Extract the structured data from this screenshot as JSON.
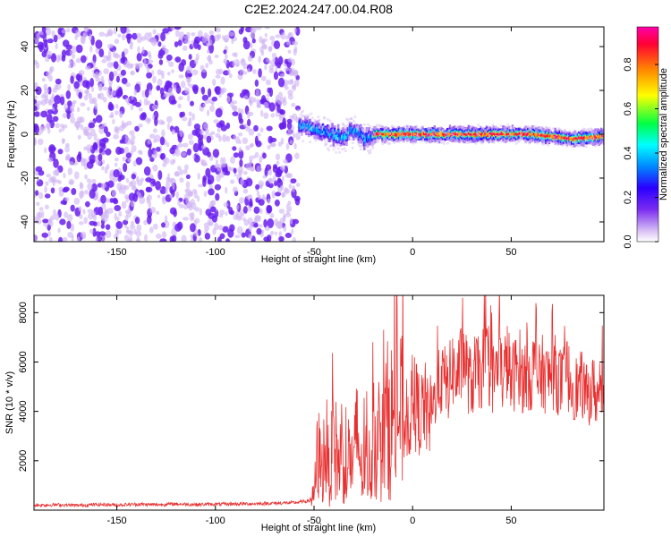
{
  "title": "C2E2.2024.247.00.04.R08",
  "chart_data": [
    {
      "type": "heatmap",
      "xlabel": "Height of straight line (km)",
      "ylabel": "Frequency (Hz)",
      "xlim": [
        -192,
        97
      ],
      "ylim": [
        -49,
        49
      ],
      "x_ticks": [
        -150,
        -100,
        -50,
        0,
        50
      ],
      "y_ticks": [
        -40,
        -20,
        0,
        20,
        40
      ],
      "grid": false,
      "colorbar": {
        "label": "Normalized spectral amplitude",
        "range": [
          0,
          0.97
        ],
        "ticks": [
          0.0,
          0.2,
          0.4,
          0.6,
          0.8
        ],
        "colormap": [
          "#ffffff",
          "#d8c0f4",
          "#7a2cf0",
          "#2a00ff",
          "#0088ff",
          "#00ffff",
          "#00ff44",
          "#ffff00",
          "#ff8800",
          "#ff0033",
          "#ff00aa"
        ]
      },
      "regions": [
        {
          "x_range": [
            -192,
            -58
          ],
          "freq_range": [
            -49,
            49
          ],
          "description_level": 0.15
        },
        {
          "x_range": [
            -58,
            -20
          ],
          "center_freq": [
            [
              -58,
              4
            ],
            [
              -50,
              3
            ],
            [
              -45,
              1
            ],
            [
              -40,
              0
            ],
            [
              -35,
              -1
            ],
            [
              -30,
              2
            ],
            [
              -25,
              -2
            ],
            [
              -20,
              0
            ]
          ],
          "peak_level": 0.45
        },
        {
          "x_range": [
            -20,
            97
          ],
          "center_freq": [
            [
              -20,
              0
            ],
            [
              0,
              0
            ],
            [
              20,
              0
            ],
            [
              40,
              0
            ],
            [
              60,
              0
            ],
            [
              80,
              -2
            ],
            [
              97,
              -1
            ]
          ],
          "peak_level": 0.95
        }
      ]
    },
    {
      "type": "line",
      "xlabel": "Height of straight line (km)",
      "ylabel": "SNR (10 * v/v)",
      "xlim": [
        -192,
        97
      ],
      "ylim": [
        0,
        8700
      ],
      "x_ticks": [
        -150,
        -100,
        -50,
        0,
        50
      ],
      "y_ticks": [
        2000,
        4000,
        6000,
        8000
      ],
      "grid": false,
      "series": [
        {
          "color": "#e83030",
          "x": [
            -192,
            -180,
            -170,
            -160,
            -150,
            -140,
            -130,
            -120,
            -110,
            -100,
            -90,
            -80,
            -70,
            -60,
            -52,
            -50,
            -48,
            -46,
            -44,
            -42,
            -40,
            -38,
            -36,
            -34,
            -32,
            -30,
            -28,
            -26,
            -24,
            -22,
            -20,
            -18,
            -16,
            -14,
            -12,
            -10,
            -8,
            -6,
            -4,
            -2,
            0,
            2,
            4,
            6,
            8,
            10,
            12,
            14,
            16,
            18,
            20,
            22,
            24,
            26,
            28,
            30,
            32,
            34,
            36,
            38,
            40,
            42,
            44,
            46,
            48,
            50,
            52,
            54,
            56,
            58,
            60,
            62,
            64,
            66,
            68,
            70,
            72,
            74,
            76,
            78,
            80,
            82,
            84,
            86,
            88,
            90,
            92,
            94,
            96
          ],
          "y": [
            200,
            220,
            190,
            230,
            210,
            240,
            220,
            250,
            230,
            240,
            250,
            260,
            280,
            300,
            380,
            600,
            2400,
            1600,
            2800,
            1200,
            3200,
            1800,
            2600,
            1400,
            2400,
            1600,
            3400,
            1500,
            2000,
            1800,
            2500,
            3000,
            2200,
            3400,
            3800,
            3600,
            4000,
            3900,
            3400,
            3700,
            4000,
            4200,
            3800,
            4300,
            3600,
            4000,
            4900,
            5200,
            5300,
            5000,
            5800,
            5300,
            5700,
            6400,
            5400,
            5100,
            5700,
            5400,
            5900,
            6000,
            5300,
            5500,
            5900,
            5400,
            6100,
            5200,
            5600,
            5900,
            5300,
            5700,
            5400,
            5900,
            5200,
            5600,
            5300,
            5500,
            5600,
            5300,
            5100,
            5600,
            5200,
            5000,
            4900,
            5100,
            4600,
            4800,
            4900,
            4500,
            4800
          ]
        }
      ]
    }
  ]
}
